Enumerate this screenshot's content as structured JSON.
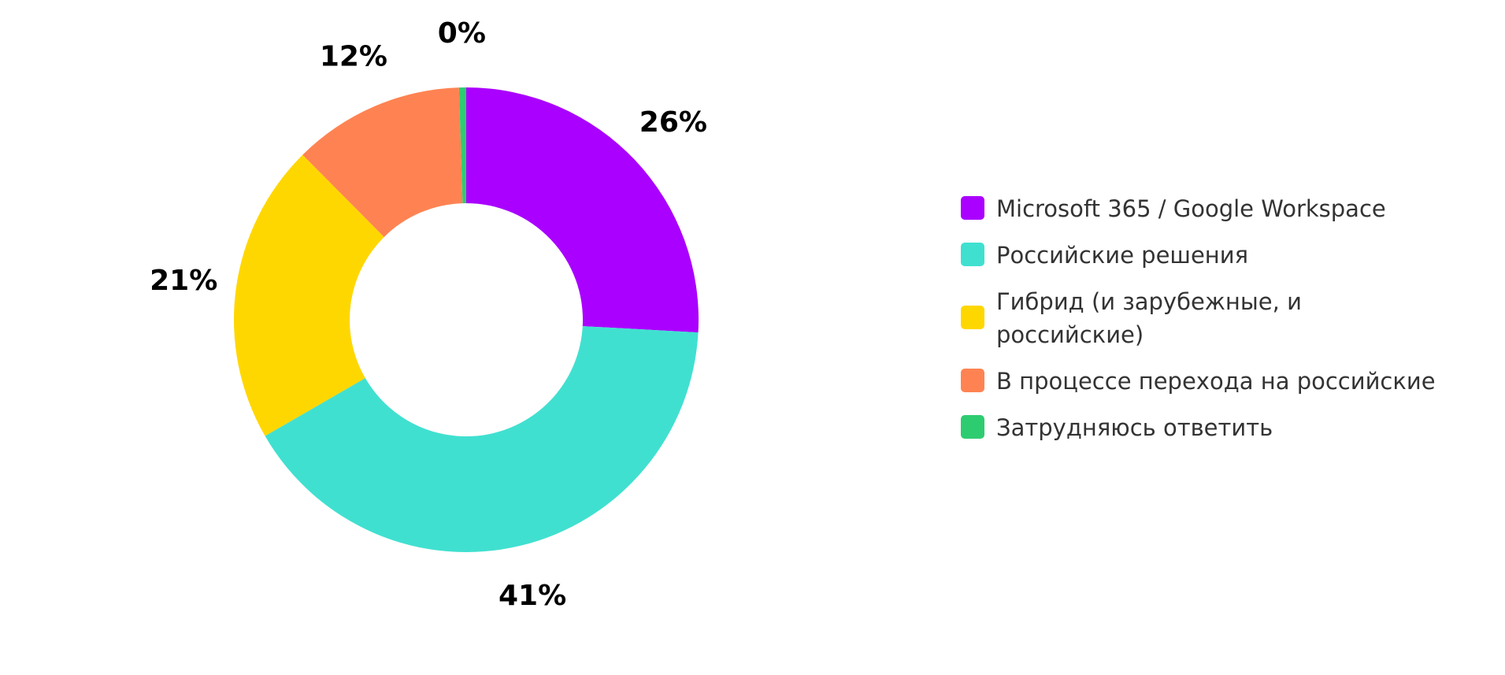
{
  "chart_data": {
    "type": "pie",
    "donut": true,
    "categories": [
      "Microsoft 365 / Google Workspace",
      "Российские решения",
      "Гибрид (и зарубежные, и российские)",
      "В процессе перехода на российские",
      "Затрудняюсь ответить"
    ],
    "values": [
      26,
      41,
      21,
      12,
      0.5
    ],
    "data_labels": [
      "26%",
      "41%",
      "21%",
      "12%",
      "0%"
    ],
    "colors": [
      "#aa00ff",
      "#40e0d0",
      "#ffd700",
      "#ff8352",
      "#2ecc71"
    ],
    "legend_position": "right"
  }
}
